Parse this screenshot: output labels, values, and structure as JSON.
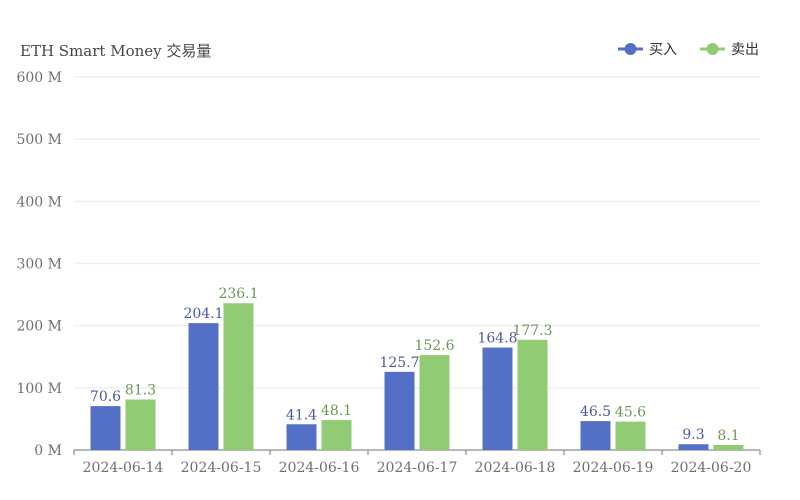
{
  "chart_data": {
    "type": "bar",
    "title": "ETH Smart Money 交易量",
    "categories": [
      "2024-06-14",
      "2024-06-15",
      "2024-06-16",
      "2024-06-17",
      "2024-06-18",
      "2024-06-19",
      "2024-06-20"
    ],
    "series": [
      {
        "name": "买入",
        "color": "#5470c6",
        "label_color": "#4b5a9e",
        "values": [
          70.6,
          204.1,
          41.4,
          125.7,
          164.8,
          46.5,
          9.3
        ]
      },
      {
        "name": "卖出",
        "color": "#91cc75",
        "label_color": "#6a9a55",
        "values": [
          81.3,
          236.1,
          48.1,
          152.6,
          177.3,
          45.6,
          8.1
        ]
      }
    ],
    "ylim": [
      0,
      600
    ],
    "y_ticks": [
      "0 M",
      "100 M",
      "200 M",
      "300 M",
      "400 M",
      "500 M",
      "600 M"
    ],
    "grid": true,
    "legend_position": "top-right"
  }
}
